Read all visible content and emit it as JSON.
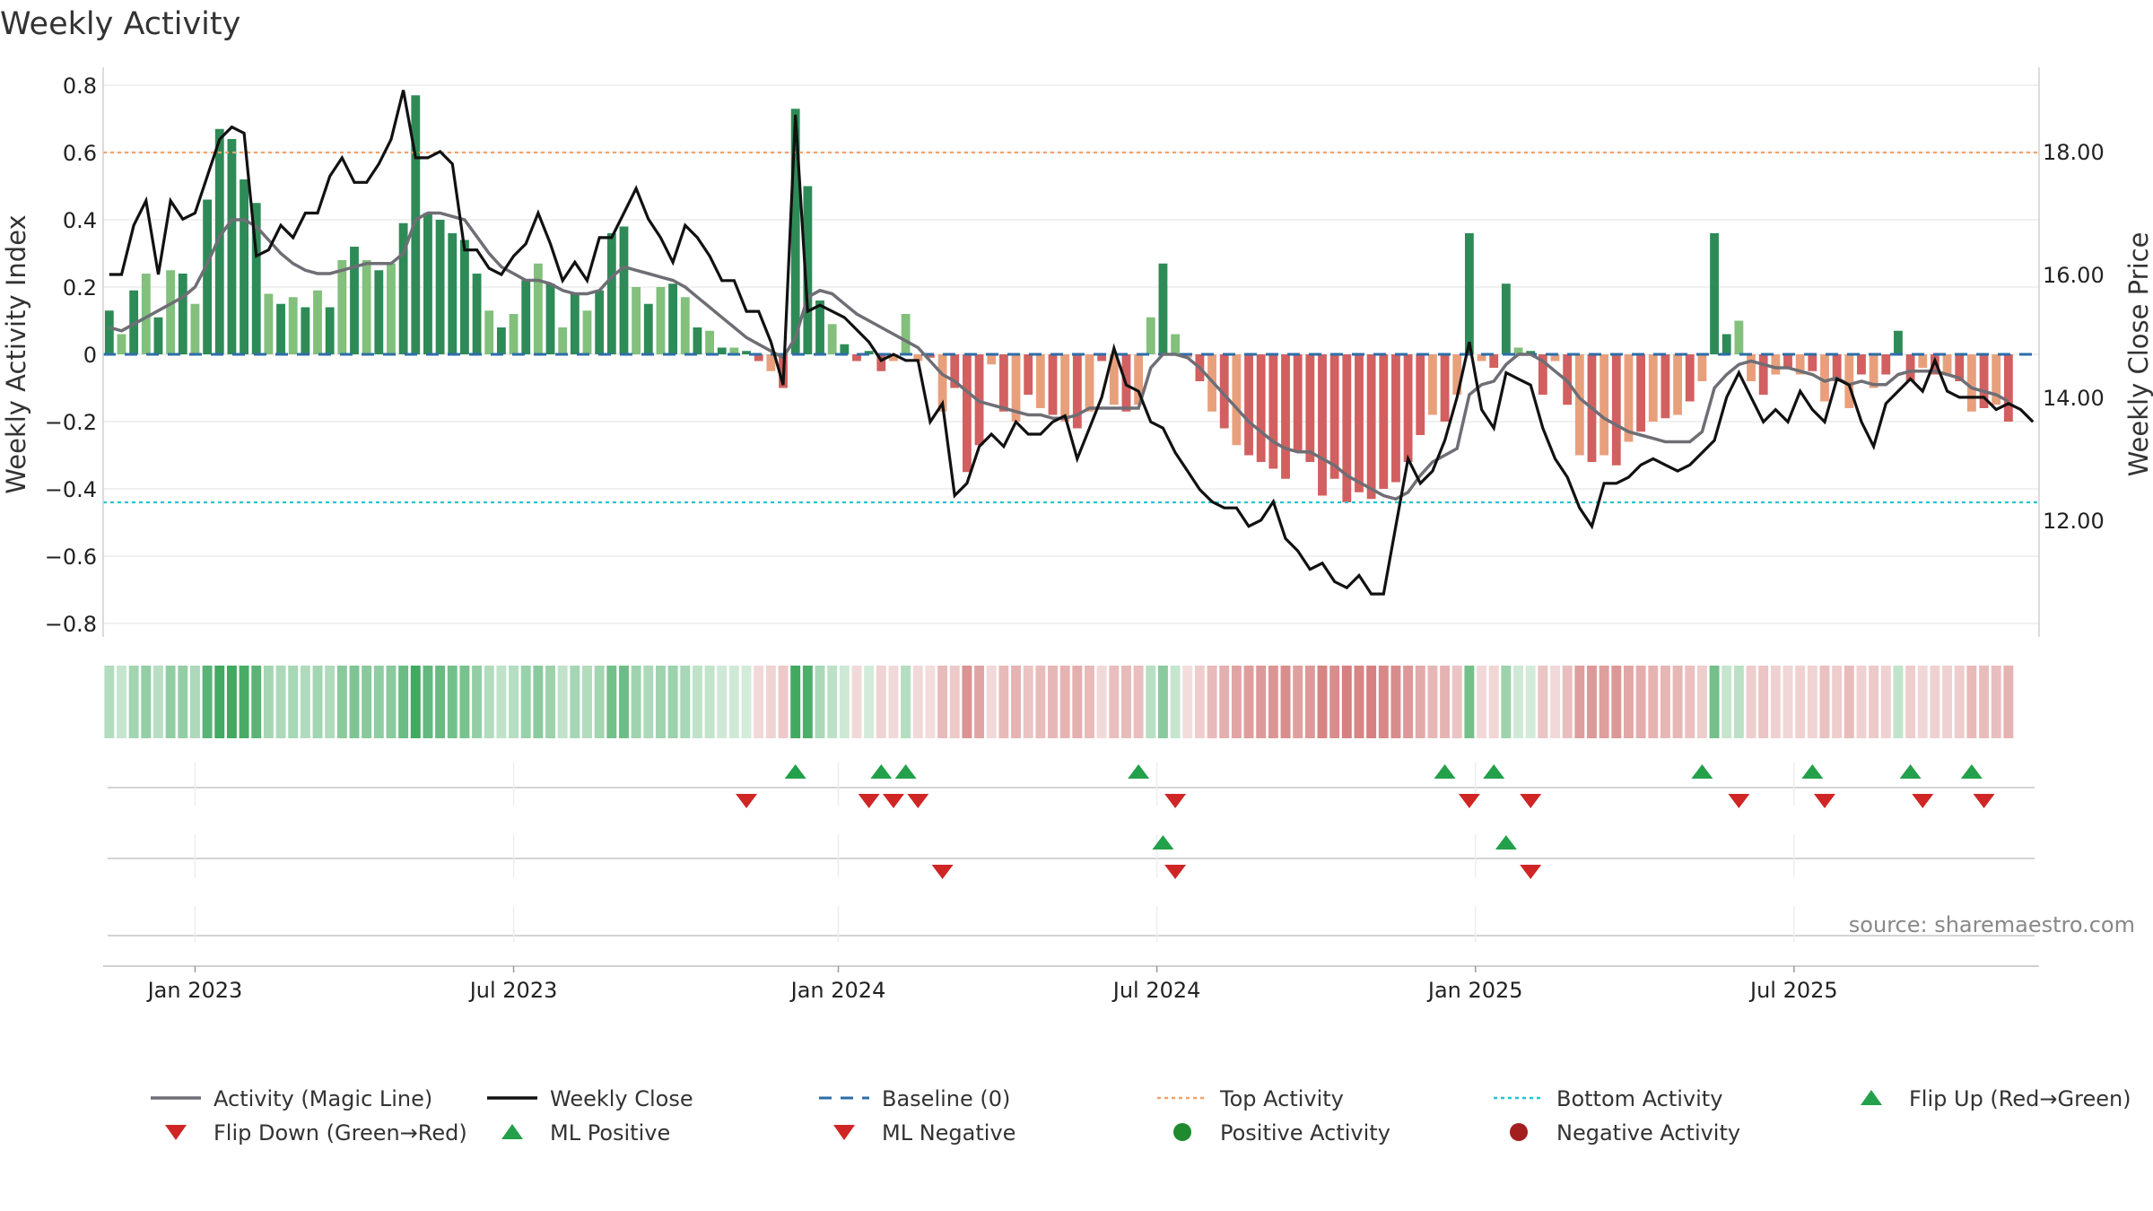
{
  "chart_data": {
    "type": "bar",
    "title": "Weekly Activity",
    "ylabel": "Weekly Activity Index",
    "y2label": "Weekly Close Price",
    "ylim": [
      -0.84,
      0.84
    ],
    "y2lim": [
      10.1,
      19.3
    ],
    "y_ticks": [
      {
        "value": 0.8,
        "label": "0.8"
      },
      {
        "value": 0.6,
        "label": "0.6"
      },
      {
        "value": 0.4,
        "label": "0.4"
      },
      {
        "value": 0.2,
        "label": "0.2"
      },
      {
        "value": 0.0,
        "label": "0"
      },
      {
        "value": -0.2,
        "label": "−0.2"
      },
      {
        "value": -0.4,
        "label": "−0.4"
      },
      {
        "value": -0.6,
        "label": "−0.6"
      },
      {
        "value": -0.8,
        "label": "−0.8"
      }
    ],
    "y2_ticks": [
      {
        "value": 18.0,
        "label": "18.00"
      },
      {
        "value": 16.0,
        "label": "16.00"
      },
      {
        "value": 14.0,
        "label": "14.00"
      },
      {
        "value": 12.0,
        "label": "12.00"
      }
    ],
    "x_ticks": [
      {
        "week": 7,
        "label": "Jan 2023"
      },
      {
        "week": 33,
        "label": "Jul 2023"
      },
      {
        "week": 59.5,
        "label": "Jan 2024"
      },
      {
        "week": 85.5,
        "label": "Jul 2024"
      },
      {
        "week": 111.5,
        "label": "Jan 2025"
      },
      {
        "week": 137.5,
        "label": "Jul 2025"
      }
    ],
    "weeks": 158,
    "activity": [
      0.13,
      0.06,
      0.19,
      0.24,
      0.11,
      0.25,
      0.24,
      0.15,
      0.46,
      0.67,
      0.64,
      0.52,
      0.45,
      0.18,
      0.15,
      0.17,
      0.14,
      0.19,
      0.14,
      0.28,
      0.32,
      0.28,
      0.25,
      0.27,
      0.39,
      0.77,
      0.42,
      0.4,
      0.36,
      0.34,
      0.24,
      0.13,
      0.08,
      0.12,
      0.22,
      0.27,
      0.21,
      0.08,
      0.18,
      0.13,
      0.19,
      0.36,
      0.38,
      0.2,
      0.15,
      0.2,
      0.21,
      0.17,
      0.08,
      0.07,
      0.02,
      0.02,
      0.01,
      -0.02,
      -0.05,
      -0.1,
      0.73,
      0.5,
      0.16,
      0.09,
      0.03,
      -0.02,
      0.01,
      -0.05,
      -0.02,
      0.12,
      -0.02,
      -0.01,
      -0.17,
      -0.1,
      -0.35,
      -0.27,
      -0.03,
      -0.17,
      -0.2,
      -0.12,
      -0.16,
      -0.18,
      -0.2,
      -0.22,
      -0.17,
      -0.02,
      -0.15,
      -0.17,
      -0.15,
      0.11,
      0.27,
      0.06,
      -0.01,
      -0.08,
      -0.17,
      -0.22,
      -0.27,
      -0.3,
      -0.32,
      -0.34,
      -0.37,
      -0.29,
      -0.32,
      -0.42,
      -0.37,
      -0.44,
      -0.41,
      -0.43,
      -0.4,
      -0.38,
      -0.32,
      -0.24,
      -0.18,
      -0.2,
      -0.12,
      0.36,
      -0.02,
      -0.04,
      0.21,
      0.02,
      0.01,
      -0.12,
      -0.02,
      -0.15,
      -0.3,
      -0.32,
      -0.3,
      -0.33,
      -0.26,
      -0.23,
      -0.2,
      -0.19,
      -0.18,
      -0.14,
      -0.08,
      0.36,
      0.06,
      0.1,
      -0.08,
      -0.12,
      -0.06,
      -0.04,
      -0.06,
      -0.05,
      -0.14,
      -0.08,
      -0.16,
      -0.06,
      -0.1,
      -0.06,
      0.07,
      -0.08,
      -0.04,
      -0.06,
      -0.06,
      -0.08,
      -0.17,
      -0.16,
      -0.15,
      -0.2
    ],
    "magic_line": [
      0.08,
      0.07,
      0.09,
      0.11,
      0.13,
      0.15,
      0.17,
      0.2,
      0.27,
      0.35,
      0.4,
      0.4,
      0.38,
      0.34,
      0.3,
      0.27,
      0.25,
      0.24,
      0.24,
      0.25,
      0.26,
      0.27,
      0.27,
      0.27,
      0.3,
      0.4,
      0.42,
      0.42,
      0.41,
      0.4,
      0.35,
      0.3,
      0.26,
      0.24,
      0.22,
      0.22,
      0.21,
      0.19,
      0.18,
      0.18,
      0.19,
      0.23,
      0.26,
      0.25,
      0.24,
      0.23,
      0.22,
      0.2,
      0.17,
      0.14,
      0.11,
      0.08,
      0.05,
      0.03,
      0.01,
      -0.01,
      0.05,
      0.17,
      0.19,
      0.18,
      0.15,
      0.12,
      0.1,
      0.08,
      0.06,
      0.04,
      0.02,
      -0.02,
      -0.06,
      -0.08,
      -0.11,
      -0.14,
      -0.15,
      -0.16,
      -0.17,
      -0.18,
      -0.18,
      -0.19,
      -0.19,
      -0.18,
      -0.16,
      -0.16,
      -0.16,
      -0.16,
      -0.16,
      -0.04,
      0.0,
      0.0,
      -0.01,
      -0.04,
      -0.08,
      -0.12,
      -0.16,
      -0.2,
      -0.23,
      -0.26,
      -0.28,
      -0.29,
      -0.29,
      -0.31,
      -0.33,
      -0.36,
      -0.38,
      -0.4,
      -0.42,
      -0.43,
      -0.41,
      -0.36,
      -0.32,
      -0.3,
      -0.28,
      -0.12,
      -0.09,
      -0.08,
      -0.03,
      0.0,
      0.0,
      -0.02,
      -0.05,
      -0.08,
      -0.13,
      -0.16,
      -0.19,
      -0.21,
      -0.23,
      -0.24,
      -0.25,
      -0.26,
      -0.26,
      -0.26,
      -0.23,
      -0.1,
      -0.06,
      -0.03,
      -0.02,
      -0.03,
      -0.04,
      -0.04,
      -0.05,
      -0.06,
      -0.08,
      -0.07,
      -0.09,
      -0.08,
      -0.09,
      -0.09,
      -0.06,
      -0.05,
      -0.05,
      -0.05,
      -0.06,
      -0.07,
      -0.1,
      -0.11,
      -0.12,
      -0.14
    ],
    "close": [
      16.0,
      16.0,
      16.8,
      17.2,
      16.0,
      17.2,
      16.9,
      17.0,
      17.6,
      18.2,
      18.4,
      18.3,
      16.3,
      16.4,
      16.8,
      16.6,
      17.0,
      17.0,
      17.6,
      17.9,
      17.5,
      17.5,
      17.8,
      18.2,
      19.0,
      17.9,
      17.9,
      18.0,
      17.8,
      16.4,
      16.4,
      16.1,
      16.0,
      16.3,
      16.5,
      17.0,
      16.5,
      15.9,
      16.2,
      15.9,
      16.6,
      16.6,
      17.0,
      17.4,
      16.9,
      16.6,
      16.2,
      16.8,
      16.6,
      16.3,
      15.9,
      15.9,
      15.4,
      15.4,
      14.9,
      14.2,
      18.6,
      15.4,
      15.5,
      15.4,
      15.3,
      15.1,
      14.9,
      14.6,
      14.7,
      14.6,
      14.6,
      13.6,
      13.9,
      12.4,
      12.6,
      13.2,
      13.4,
      13.2,
      13.6,
      13.4,
      13.4,
      13.6,
      13.7,
      13.0,
      13.5,
      14.0,
      14.8,
      14.2,
      14.1,
      13.6,
      13.5,
      13.1,
      12.8,
      12.5,
      12.3,
      12.2,
      12.2,
      11.9,
      12.0,
      12.3,
      11.7,
      11.5,
      11.2,
      11.3,
      11.0,
      10.9,
      11.1,
      10.8,
      10.8,
      11.9,
      13.0,
      12.6,
      12.8,
      13.3,
      14.0,
      14.9,
      13.8,
      13.5,
      14.4,
      14.3,
      14.2,
      13.5,
      13.0,
      12.7,
      12.2,
      11.9,
      12.6,
      12.6,
      12.7,
      12.9,
      13.0,
      12.9,
      12.8,
      12.9,
      13.1,
      13.3,
      14.0,
      14.4,
      14.0,
      13.6,
      13.8,
      13.6,
      14.1,
      13.8,
      13.6,
      14.3,
      14.2,
      13.6,
      13.2,
      13.9,
      14.1,
      14.3,
      14.1,
      14.6,
      14.1,
      14.0,
      14.0,
      14.0,
      13.8,
      13.9,
      13.8,
      13.6
    ],
    "baseline": 0,
    "top_activity": 0.6,
    "bottom_activity": -0.44,
    "flip_up_weeks": [
      56,
      63,
      65,
      84,
      109,
      113,
      130,
      139,
      147,
      152
    ],
    "flip_down_weeks": [
      52,
      62,
      64,
      66,
      87,
      111,
      116,
      133,
      140,
      148,
      153
    ],
    "ml_positive_weeks": [
      86,
      114
    ],
    "ml_negative_weeks": [
      68,
      87,
      116
    ],
    "colors": {
      "pos_strong": "#2e8b57",
      "pos_weak": "#82c07c",
      "neg_strong": "#d26060",
      "neg_weak": "#e8a07c",
      "magic_line": "#6e6e75",
      "close": "#111111",
      "baseline": "#2d6ea8",
      "top": "#f2a36b",
      "bottom": "#27c4cf",
      "up": "#23a04a",
      "down": "#d02525"
    },
    "source": "source: sharemaestro.com",
    "legend": [
      {
        "label": "Activity (Magic Line)",
        "kind": "line-gray"
      },
      {
        "label": "Weekly Close",
        "kind": "line-black"
      },
      {
        "label": "Baseline (0)",
        "kind": "dash-blue"
      },
      {
        "label": "Top Activity",
        "kind": "dot-orange"
      },
      {
        "label": "Bottom Activity",
        "kind": "dot-cyan"
      },
      {
        "label": "Flip Up (Red→Green)",
        "kind": "tri-up"
      },
      {
        "label": "Flip Down (Green→Red)",
        "kind": "tri-down"
      },
      {
        "label": "ML Positive",
        "kind": "tri-up"
      },
      {
        "label": "ML Negative",
        "kind": "tri-down"
      },
      {
        "label": "Positive Activity",
        "kind": "circle-green"
      },
      {
        "label": "Negative Activity",
        "kind": "circle-red"
      }
    ]
  }
}
